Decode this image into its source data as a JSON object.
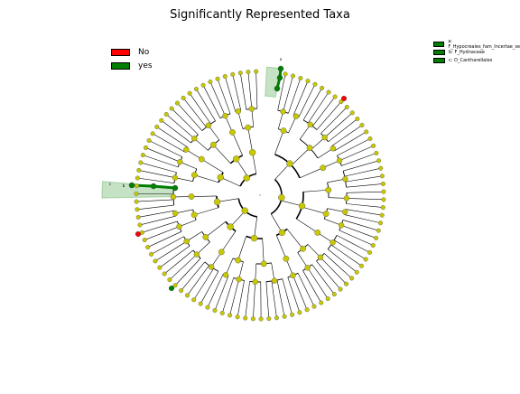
{
  "title": "Significantly Represented Taxa",
  "legend": [
    {
      "label": "No",
      "color": "#ff0000"
    },
    {
      "label": "yes",
      "color": "#007f00"
    }
  ],
  "clade_legend": [
    {
      "label": "a: F_Hypocreales_fam_Incertae_sedis",
      "color": "#007f00"
    },
    {
      "label": "b: F_Hydnaceae",
      "color": "#007f00"
    },
    {
      "label": "c: O_Cantharellales",
      "color": "#007f00"
    }
  ],
  "colors": {
    "neutral_node": "#c8c800",
    "significant": "#007f00",
    "not_significant": "#ff0000",
    "highlight": "#7fbf7f"
  },
  "chart_data": {
    "type": "cladogram",
    "title": "Significantly Represented Taxa",
    "legend_placement": "top-left",
    "highlighted_clades": [
      {
        "marker": "a",
        "name": "F_Hypocreales_fam_Incertae_sedis",
        "status": "yes"
      },
      {
        "marker": "b",
        "name": "F_Hydnaceae",
        "status": "yes"
      },
      {
        "marker": "c",
        "name": "O_Cantharellales",
        "status": "yes"
      }
    ]
  }
}
